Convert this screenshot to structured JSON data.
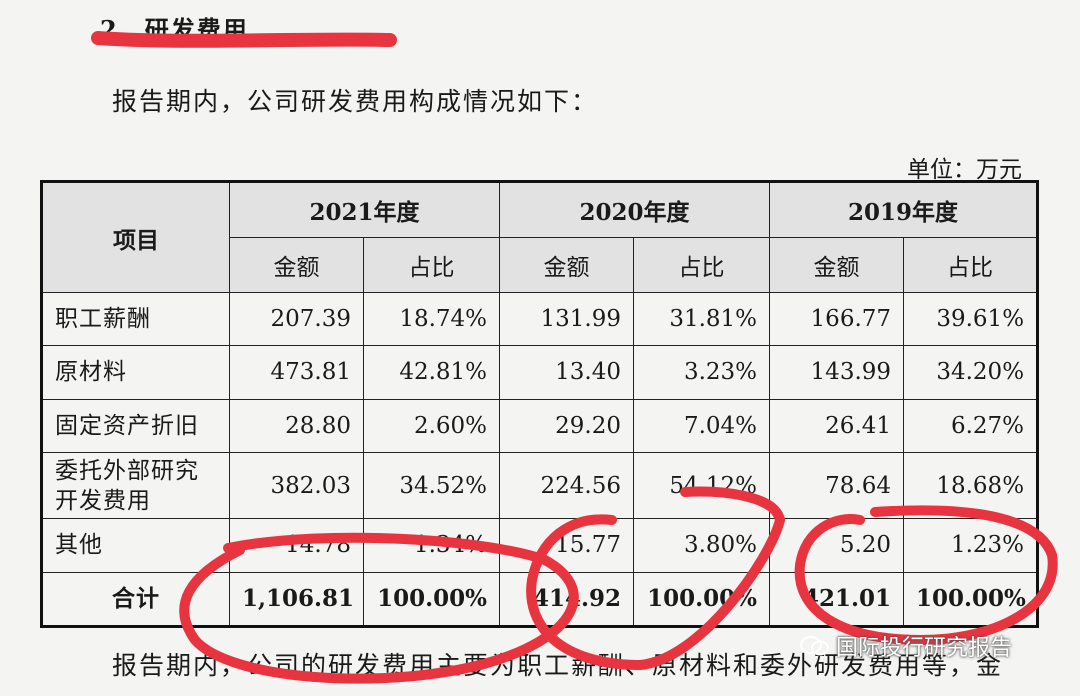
{
  "heading": "2、研发费用",
  "intro": "报告期内，公司研发费用构成情况如下：",
  "unit": "单位：万元",
  "table": {
    "item_header": "项目",
    "years": [
      "2021年度",
      "2020年度",
      "2019年度"
    ],
    "sub_headers": [
      "金额",
      "占比"
    ],
    "rows": [
      {
        "label": "职工薪酬",
        "values": [
          "207.39",
          "18.74%",
          "131.99",
          "31.81%",
          "166.77",
          "39.61%"
        ]
      },
      {
        "label": "原材料",
        "values": [
          "473.81",
          "42.81%",
          "13.40",
          "3.23%",
          "143.99",
          "34.20%"
        ]
      },
      {
        "label": "固定资产折旧",
        "values": [
          "28.80",
          "2.60%",
          "29.20",
          "7.04%",
          "26.41",
          "6.27%"
        ]
      },
      {
        "label": "委托外部研究开发费用",
        "values": [
          "382.03",
          "34.52%",
          "224.56",
          "54.12%",
          "78.64",
          "18.68%"
        ]
      },
      {
        "label": "其他",
        "values": [
          "14.78",
          "1.34%",
          "15.77",
          "3.80%",
          "5.20",
          "1.23%"
        ]
      }
    ],
    "total": {
      "label": "合计",
      "values": [
        "1,106.81",
        "100.00%",
        "414.92",
        "100.00%",
        "421.01",
        "100.00%"
      ]
    }
  },
  "bottom_text": "报告期内，公司的研发费用主要为职工薪酬、原材料和委外研发费用等，金",
  "watermark": "国际投行研究报告",
  "annotation_color": "#e8343f"
}
